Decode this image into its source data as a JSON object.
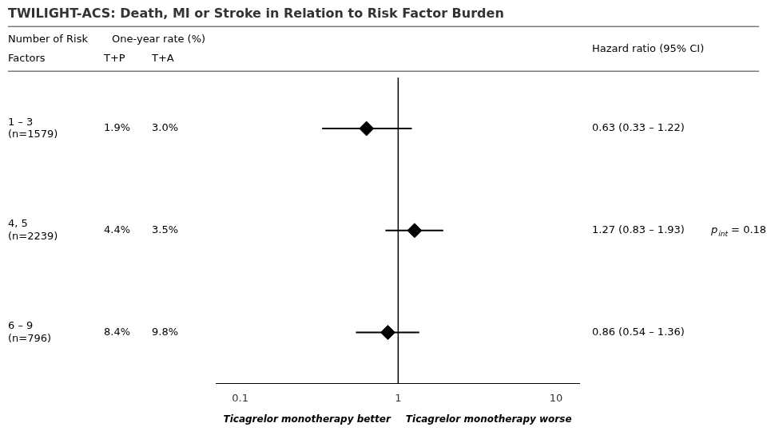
{
  "chart_data": {
    "type": "forest",
    "title": "TWILIGHT-ACS: Death, MI or Stroke in Relation to Risk Factor Burden",
    "ylabel": [
      "Number of Risk",
      "Factors"
    ],
    "categories": [
      [
        "1 – 3",
        "(n=1579)"
      ],
      [
        "4, 5",
        "(n=2239)"
      ],
      [
        "6 – 9",
        "(n=796)"
      ]
    ],
    "values": [
      0.63,
      1.27,
      0.86
    ],
    "ci_low": [
      0.33,
      0.83,
      0.54
    ],
    "ci_high": [
      1.22,
      1.93,
      1.36
    ],
    "value_labels": [
      "0.63 (0.33 – 1.22)",
      "1.27 (0.83 – 1.93)",
      "0.86 (0.54 – 1.36)"
    ],
    "value_header": "Hazard ratio (95% CI)",
    "data_labels": true,
    "rate_header": "One-year rate (%)",
    "table_columns": [
      {
        "name": "T+P",
        "values": [
          1.9,
          4.4,
          8.4
        ],
        "value_labels": [
          "1.9%",
          "4.4%",
          "8.4%"
        ]
      },
      {
        "name": "T+A",
        "values": [
          3.0,
          3.5,
          9.8
        ],
        "value_labels": [
          "3.0%",
          "3.5%",
          "9.8%"
        ]
      }
    ],
    "p_int_text": {
      "label": "p",
      "subscript": "int"
    },
    "p_int_values": [
      null,
      0.18,
      null
    ],
    "p_int_labels": [
      null,
      " = 0.18",
      null
    ],
    "xlabel_left": "Ticagrelor monotherapy better",
    "xlabel_right": "Ticagrelor monotherapy worse",
    "reference_value": 1,
    "log": "x",
    "xlim": [
      0.07,
      14
    ],
    "xticks": [
      0.1,
      1,
      10
    ],
    "marker": "diamond",
    "color": "#000000",
    "grid": false
  }
}
